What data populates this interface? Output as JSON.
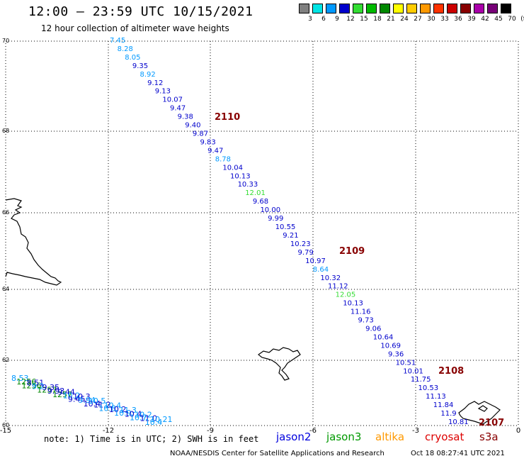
{
  "title": "12:00 – 23:59 UTC 10/15/2021",
  "subtitle": "12 hour collection of altimeter wave heights",
  "legend": {
    "unit": "(ft)",
    "bins": [
      {
        "label": "3",
        "color": "#808080"
      },
      {
        "label": "6",
        "color": "#00e5e5"
      },
      {
        "label": "9",
        "color": "#0099ff"
      },
      {
        "label": "12",
        "color": "#0000cc"
      },
      {
        "label": "15",
        "color": "#33dd33"
      },
      {
        "label": "18",
        "color": "#00bb00"
      },
      {
        "label": "21",
        "color": "#008800"
      },
      {
        "label": "24",
        "color": "#ffff00"
      },
      {
        "label": "27",
        "color": "#ffcc00"
      },
      {
        "label": "30",
        "color": "#ff9900"
      },
      {
        "label": "33",
        "color": "#ff3300"
      },
      {
        "label": "36",
        "color": "#cc0000"
      },
      {
        "label": "39",
        "color": "#880000"
      },
      {
        "label": "42",
        "color": "#aa00aa"
      },
      {
        "label": "45",
        "color": "#770077"
      },
      {
        "label": "70",
        "color": "#000000"
      }
    ]
  },
  "axes": {
    "lat_labels": [
      "70",
      "68",
      "66",
      "64",
      "62",
      "60"
    ],
    "lon_labels": [
      "-15",
      "-12",
      "-9",
      "-6",
      "-3",
      "0"
    ]
  },
  "track_time_labels": [
    "2110",
    "2109",
    "2108",
    "2107"
  ],
  "track_time_color": "#880000",
  "track_values": [
    {
      "v": "7.45",
      "c": "#0099ff"
    },
    {
      "v": "8.28",
      "c": "#0099ff"
    },
    {
      "v": "8.05",
      "c": "#0099ff"
    },
    {
      "v": "9.35",
      "c": "#0000cc"
    },
    {
      "v": "8.92",
      "c": "#0099ff"
    },
    {
      "v": "9.12",
      "c": "#0000cc"
    },
    {
      "v": "9.13",
      "c": "#0000cc"
    },
    {
      "v": "10.07",
      "c": "#0000cc"
    },
    {
      "v": "9.47",
      "c": "#0000cc"
    },
    {
      "v": "9.38",
      "c": "#0000cc"
    },
    {
      "v": "9.40",
      "c": "#0000cc"
    },
    {
      "v": "9.87",
      "c": "#0000cc"
    },
    {
      "v": "9.83",
      "c": "#0000cc"
    },
    {
      "v": "9.47",
      "c": "#0000cc"
    },
    {
      "v": "8.78",
      "c": "#0099ff"
    },
    {
      "v": "10.04",
      "c": "#0000cc"
    },
    {
      "v": "10.13",
      "c": "#0000cc"
    },
    {
      "v": "10.33",
      "c": "#0000cc"
    },
    {
      "v": "12.01",
      "c": "#33dd33"
    },
    {
      "v": "9.68",
      "c": "#0000cc"
    },
    {
      "v": "10.00",
      "c": "#0000cc"
    },
    {
      "v": "9.99",
      "c": "#0000cc"
    },
    {
      "v": "10.55",
      "c": "#0000cc"
    },
    {
      "v": "9.21",
      "c": "#0000cc"
    },
    {
      "v": "10.23",
      "c": "#0000cc"
    },
    {
      "v": "9.79",
      "c": "#0000cc"
    },
    {
      "v": "10.97",
      "c": "#0000cc"
    },
    {
      "v": "8.64",
      "c": "#0099ff"
    },
    {
      "v": "10.32",
      "c": "#0000cc"
    },
    {
      "v": "11.12",
      "c": "#0000cc"
    },
    {
      "v": "12.05",
      "c": "#33dd33"
    },
    {
      "v": "10.13",
      "c": "#0000cc"
    },
    {
      "v": "11.16",
      "c": "#0000cc"
    },
    {
      "v": "9.73",
      "c": "#0000cc"
    },
    {
      "v": "9.06",
      "c": "#0000cc"
    },
    {
      "v": "10.64",
      "c": "#0000cc"
    },
    {
      "v": "10.69",
      "c": "#0000cc"
    },
    {
      "v": "9.36",
      "c": "#0000cc"
    },
    {
      "v": "10.51",
      "c": "#0000cc"
    },
    {
      "v": "10.01",
      "c": "#0000cc"
    },
    {
      "v": "11.75",
      "c": "#0000cc"
    },
    {
      "v": "10.53",
      "c": "#0000cc"
    },
    {
      "v": "11.13",
      "c": "#0000cc"
    },
    {
      "v": "11.84",
      "c": "#0000cc"
    },
    {
      "v": "11.9",
      "c": "#0000cc"
    },
    {
      "v": "10.81",
      "c": "#0000cc"
    }
  ],
  "cluster_values": [
    {
      "v": "8.53",
      "c": "#0099ff"
    },
    {
      "v": "1256",
      "c": "#008800"
    },
    {
      "v": "1256",
      "c": "#008800"
    },
    {
      "v": "8.51",
      "c": "#0000cc"
    },
    {
      "v": "9.2",
      "c": "#0099ff"
    },
    {
      "v": "1257",
      "c": "#008800"
    },
    {
      "v": "9.35",
      "c": "#0000cc"
    },
    {
      "v": "9.93",
      "c": "#0000cc"
    },
    {
      "v": "1257",
      "c": "#008800"
    },
    {
      "v": "9.44",
      "c": "#0000cc"
    },
    {
      "v": "10.2",
      "c": "#0099ff"
    },
    {
      "v": "9.45",
      "c": "#0000cc"
    },
    {
      "v": "10.3",
      "c": "#0000cc"
    },
    {
      "v": "9.94",
      "c": "#0099ff"
    },
    {
      "v": "10.4",
      "c": "#0000cc"
    },
    {
      "v": "10.5",
      "c": "#0099ff"
    },
    {
      "v": "11.2",
      "c": "#0000cc"
    },
    {
      "v": "10.8",
      "c": "#0099ff"
    },
    {
      "v": "10.4",
      "c": "#0099ff"
    },
    {
      "v": "10.2",
      "c": "#0000cc"
    },
    {
      "v": "10.9",
      "c": "#0099ff"
    },
    {
      "v": "11.3",
      "c": "#0099ff"
    },
    {
      "v": "10.4",
      "c": "#0000cc"
    },
    {
      "v": "10.7",
      "c": "#0099ff"
    },
    {
      "v": "10.2",
      "c": "#0099ff"
    },
    {
      "v": "11.0",
      "c": "#0000cc"
    },
    {
      "v": "10.4",
      "c": "#0099ff"
    },
    {
      "v": "10.21",
      "c": "#0099ff"
    }
  ],
  "note": "note: 1) Time is in UTC; 2) SWH is in feet",
  "satellites": [
    {
      "name": "jason2",
      "color": "#0000dd"
    },
    {
      "name": "jason3",
      "color": "#009900"
    },
    {
      "name": "altika",
      "color": "#ff9900"
    },
    {
      "name": "cryosat",
      "color": "#dd0000"
    },
    {
      "name": "s3a",
      "color": "#880000"
    }
  ],
  "credit": "NOAA/NESDIS Center for Satellite Applications and Research",
  "generated": "Oct 18 08:27:41 UTC 2021"
}
